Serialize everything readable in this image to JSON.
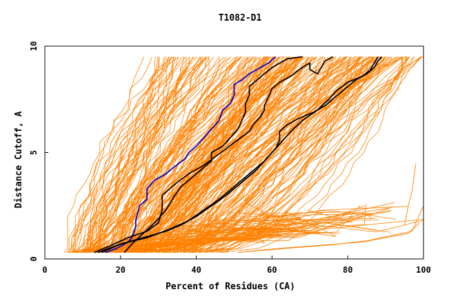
{
  "chart_data": {
    "type": "line",
    "title": "T1082-D1",
    "xlabel": "Percent of Residues (CA)",
    "ylabel": "Distance Cutoff, A",
    "xlim": [
      0,
      100
    ],
    "ylim": [
      0,
      10
    ],
    "xticks": [
      "0",
      "20",
      "40",
      "60",
      "80",
      "100"
    ],
    "xtick_values": [
      0,
      20,
      40,
      60,
      80,
      100
    ],
    "yticks": [
      "0",
      "5",
      "10"
    ],
    "ytick_values": [
      0,
      5,
      10
    ],
    "colors": {
      "background_curves": "#ff8000",
      "highlight_curve": "#0000cc",
      "reference_curves": "#000000",
      "frame": "#000000"
    },
    "background_band": {
      "seed": 1082,
      "count": 230,
      "start_x": [
        5,
        52
      ],
      "end_x_at_top": [
        29,
        100
      ],
      "y_levels": [
        0.3,
        0.5,
        1,
        1.5,
        2,
        2.5,
        3,
        3.5,
        4,
        4.5,
        5,
        5.5,
        6,
        6.5,
        7,
        7.5,
        8,
        8.5,
        9,
        9.5
      ]
    },
    "outlier_series": [
      {
        "x": [
          51,
          62,
          70,
          84,
          96,
          99
        ],
        "y": [
          0.3,
          0.5,
          0.6,
          0.8,
          1.2,
          1.7
        ]
      },
      {
        "x": [
          51,
          64,
          75,
          85,
          97,
          100
        ],
        "y": [
          0.3,
          0.5,
          0.65,
          0.85,
          1.3,
          2.5
        ]
      },
      {
        "x": [
          95,
          96,
          97,
          98
        ],
        "y": [
          1.6,
          2.5,
          3.2,
          4.5
        ]
      }
    ],
    "series": [
      {
        "role": "highlight",
        "x": [
          16,
          19,
          22,
          23,
          24,
          24,
          25,
          27,
          27,
          29,
          32,
          34,
          37,
          38,
          40,
          42,
          44,
          46,
          47,
          49,
          50,
          50,
          52,
          54,
          57,
          59,
          61
        ],
        "y": [
          0.3,
          0.5,
          0.8,
          1.0,
          1.5,
          1.8,
          2.5,
          2.8,
          3.3,
          3.7,
          4.0,
          4.3,
          4.7,
          5.0,
          5.3,
          5.7,
          6.1,
          6.5,
          7.0,
          7.3,
          7.7,
          8.2,
          8.4,
          8.7,
          9.0,
          9.2,
          9.5
        ]
      },
      {
        "role": "reference",
        "x": [
          13,
          17,
          22,
          27,
          30,
          31,
          31,
          33,
          35,
          38,
          42,
          45,
          48,
          51,
          54,
          55,
          57,
          58,
          58,
          59,
          60,
          62,
          65,
          68,
          70,
          70,
          72,
          73,
          74,
          76,
          76
        ],
        "y": [
          0.3,
          0.6,
          1.0,
          1.3,
          1.7,
          2.3,
          3.0,
          3.3,
          3.6,
          4.0,
          4.4,
          4.8,
          5.2,
          5.6,
          6.0,
          6.3,
          6.7,
          7.0,
          7.2,
          7.6,
          8.0,
          8.3,
          8.6,
          9.0,
          9.2,
          8.9,
          8.7,
          9.0,
          9.3,
          9.5,
          9.5
        ]
      },
      {
        "role": "reference",
        "x": [
          14,
          20,
          27,
          33,
          38,
          42,
          46,
          50,
          54,
          58,
          61,
          62,
          62,
          64,
          67,
          71,
          74,
          76,
          78,
          80,
          82,
          85,
          87,
          88,
          89
        ],
        "y": [
          0.3,
          0.7,
          1.0,
          1.4,
          1.8,
          2.3,
          2.8,
          3.4,
          4.0,
          4.6,
          5.2,
          5.6,
          6.0,
          6.3,
          6.6,
          6.9,
          7.2,
          7.5,
          7.8,
          8.1,
          8.4,
          8.7,
          9.0,
          9.3,
          9.5
        ]
      },
      {
        "role": "reference",
        "x": [
          15,
          20,
          26,
          32,
          36,
          40,
          44,
          48,
          52,
          56,
          59,
          62,
          65,
          68,
          72,
          75,
          77,
          80,
          84,
          86,
          87,
          88
        ],
        "y": [
          0.3,
          0.7,
          1.0,
          1.3,
          1.6,
          2.0,
          2.5,
          3.0,
          3.6,
          4.2,
          4.8,
          5.4,
          6.0,
          6.5,
          7.0,
          7.5,
          7.9,
          8.3,
          8.6,
          8.9,
          9.2,
          9.5
        ]
      },
      {
        "role": "reference",
        "x": [
          21,
          23,
          26,
          29,
          32,
          34,
          36,
          40,
          44,
          44,
          47,
          49,
          51,
          52,
          53,
          53,
          54,
          54,
          56,
          58,
          60,
          62,
          64,
          68
        ],
        "y": [
          0.3,
          0.7,
          1.2,
          1.7,
          2.3,
          2.9,
          3.4,
          4.0,
          4.6,
          5.0,
          5.3,
          5.7,
          6.1,
          6.5,
          6.9,
          7.3,
          7.7,
          8.1,
          8.4,
          8.7,
          9.0,
          9.2,
          9.4,
          9.5
        ]
      }
    ]
  }
}
